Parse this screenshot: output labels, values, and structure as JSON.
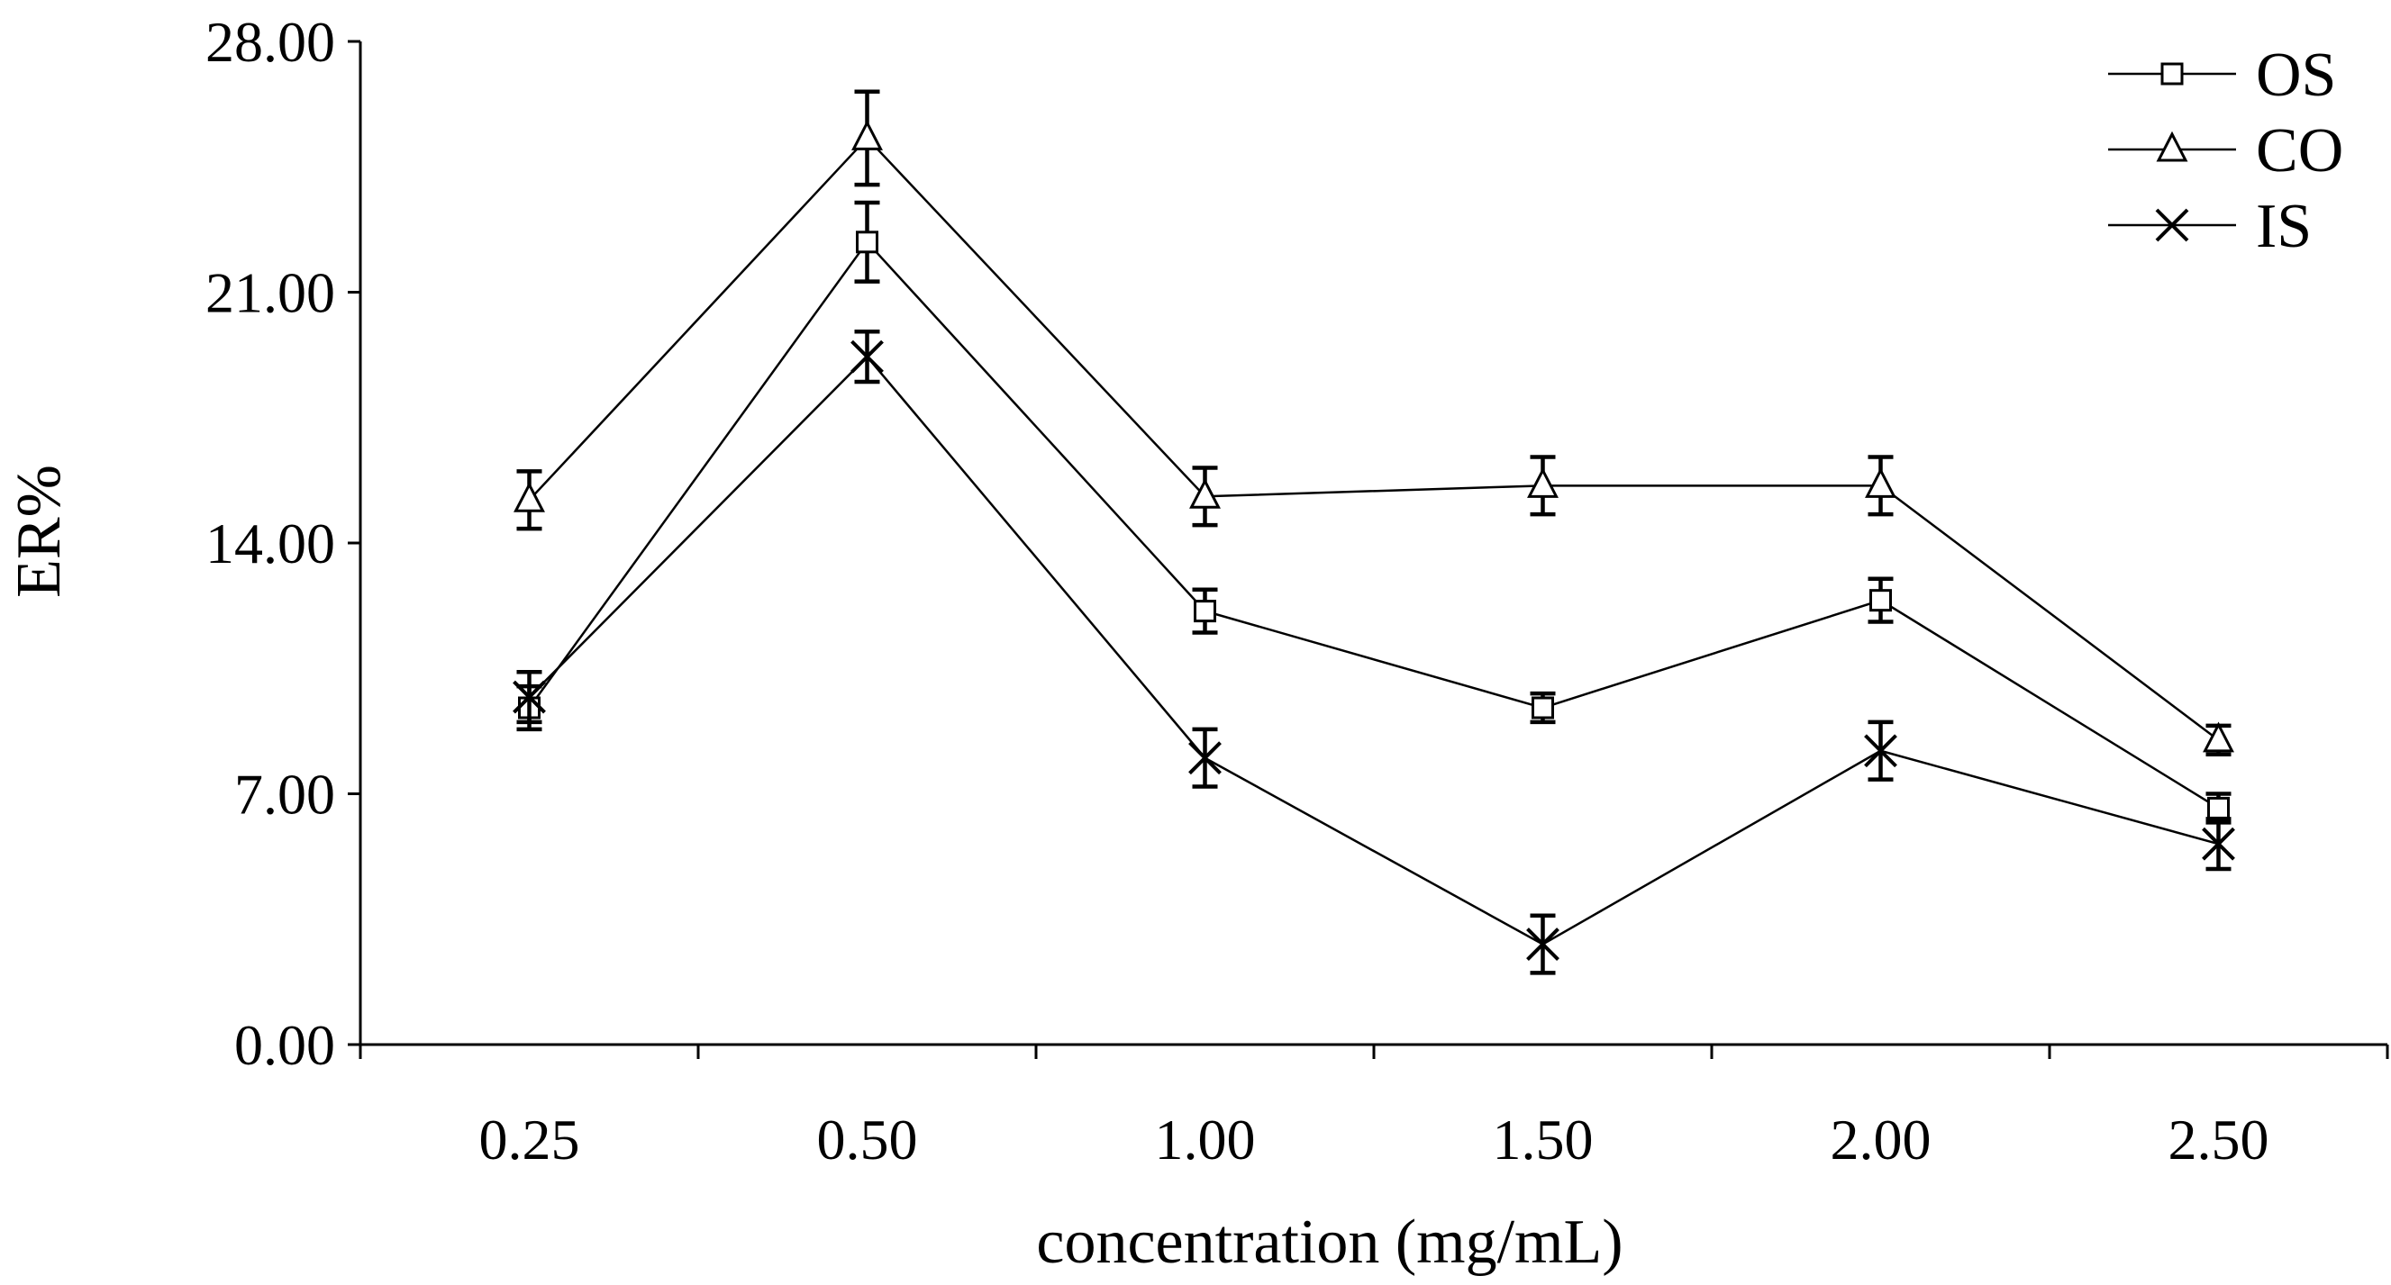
{
  "chart_data": {
    "type": "line",
    "title": "",
    "xlabel": "concentration (mg/mL)",
    "ylabel": "ER%",
    "categories": [
      "0.25",
      "0.50",
      "1.00",
      "1.50",
      "2.00",
      "2.50"
    ],
    "ylim": [
      0,
      28
    ],
    "yticks": [
      "0.00",
      "7.00",
      "14.00",
      "21.00",
      "28.00"
    ],
    "ytick_values": [
      0,
      7,
      14,
      21,
      28
    ],
    "legend_position": "top-right",
    "grid": false,
    "series": [
      {
        "name": "OS",
        "marker": "square",
        "values": [
          9.4,
          22.4,
          12.1,
          9.4,
          12.4,
          6.6
        ],
        "errors": [
          0.6,
          1.1,
          0.6,
          0.4,
          0.6,
          0.4
        ]
      },
      {
        "name": "CO",
        "marker": "triangle",
        "values": [
          15.2,
          25.3,
          15.3,
          15.6,
          15.6,
          8.5
        ],
        "errors": [
          0.8,
          1.3,
          0.8,
          0.8,
          0.8,
          0.4
        ]
      },
      {
        "name": "IS",
        "marker": "x",
        "values": [
          9.7,
          19.2,
          8.0,
          2.8,
          8.2,
          5.6
        ],
        "errors": [
          0.7,
          0.7,
          0.8,
          0.8,
          0.8,
          0.7
        ]
      }
    ]
  }
}
